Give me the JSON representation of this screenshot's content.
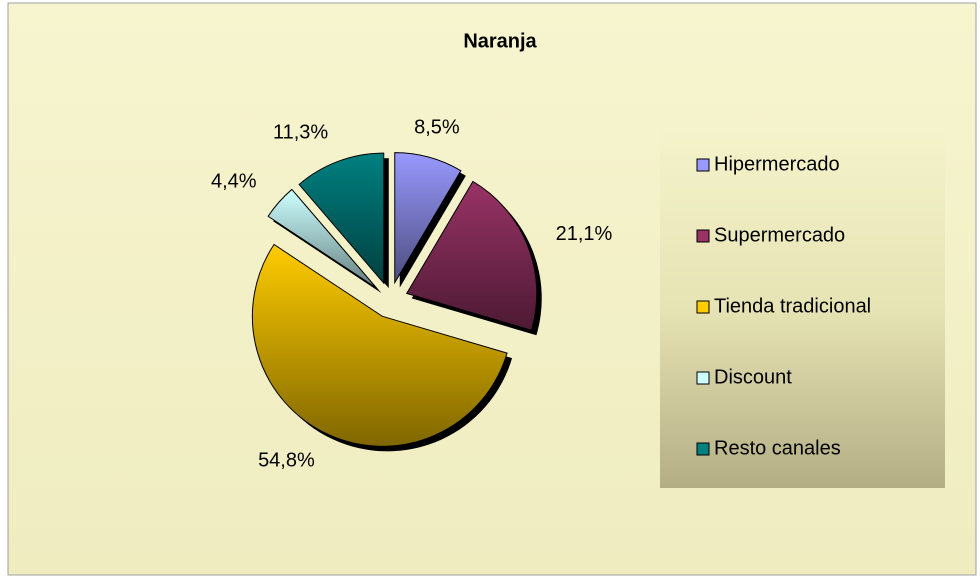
{
  "chart_data": {
    "type": "pie",
    "title": "Naranja",
    "categories": [
      "Hipermercado",
      "Supermercado",
      "Tienda tradicional",
      "Discount",
      "Resto canales"
    ],
    "values": [
      8.5,
      21.1,
      54.8,
      4.4,
      11.3
    ],
    "value_labels": [
      "8,5%",
      "21,1%",
      "54,8%",
      "4,4%",
      "11,3%"
    ],
    "colors": [
      "#9999ff",
      "#993366",
      "#ffcc00",
      "#ccffff",
      "#008080"
    ],
    "legend": "right"
  }
}
